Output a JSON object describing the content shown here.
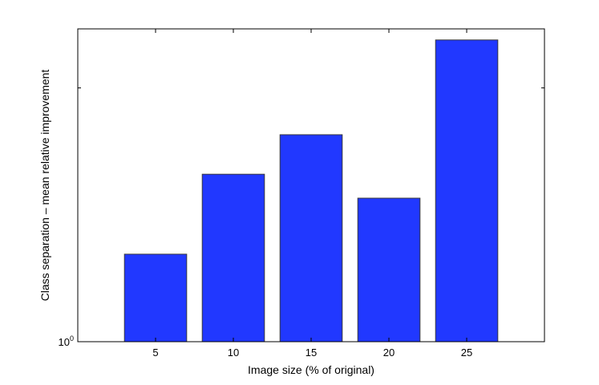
{
  "chart_data": {
    "type": "bar",
    "categories": [
      "5",
      "10",
      "15",
      "20",
      "25"
    ],
    "values": [
      1.27,
      1.58,
      1.76,
      1.48,
      2.28
    ],
    "title": "",
    "xlabel": "Image size (% of original)",
    "ylabel": "Class separation – mean relative improvement",
    "yscale": "log",
    "ylim": [
      1.0,
      2.35
    ],
    "y_tick_label": {
      "base": "10",
      "exponent": "0"
    },
    "grid": false,
    "bar_color": "#2138ff",
    "bar_edge_color": "#3a3a3a"
  }
}
